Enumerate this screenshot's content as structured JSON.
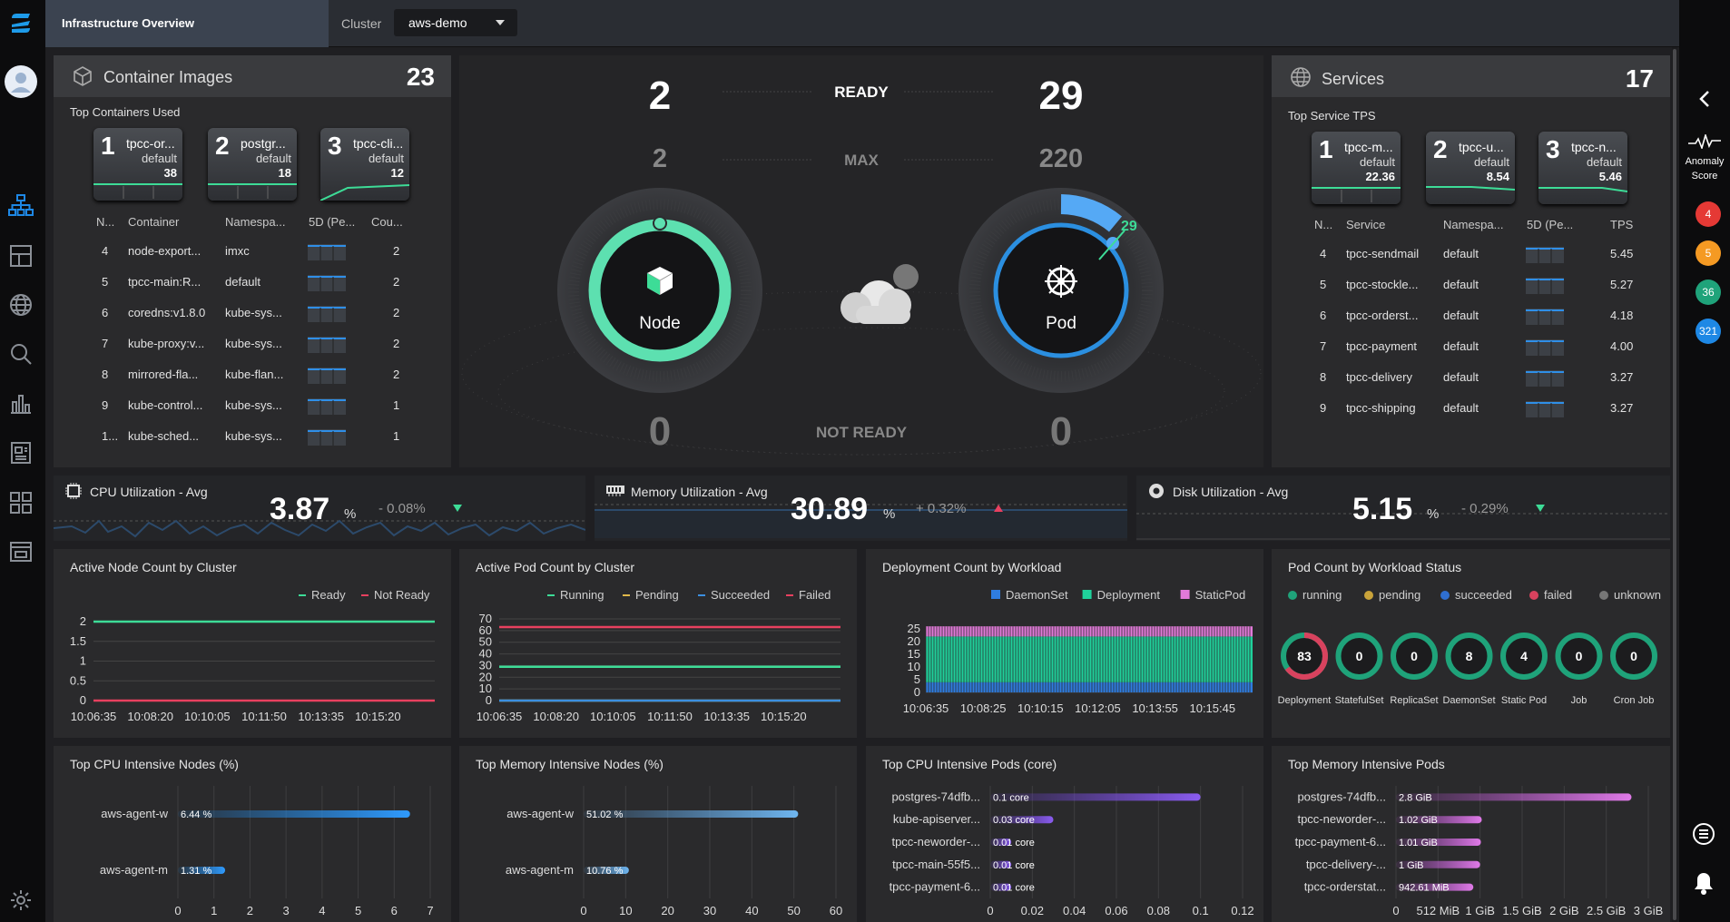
{
  "header": {
    "page_title": "Infrastructure Overview",
    "cluster_label": "Cluster",
    "cluster_value": "aws-demo"
  },
  "container_images": {
    "title": "Container Images",
    "count": "23",
    "subtitle": "Top Containers Used",
    "cards": [
      {
        "rank": "1",
        "name": "tpcc-or...",
        "namespace": "default",
        "value": "38"
      },
      {
        "rank": "2",
        "name": "postgr...",
        "namespace": "default",
        "value": "18"
      },
      {
        "rank": "3",
        "name": "tpcc-cli...",
        "namespace": "default",
        "value": "12"
      }
    ],
    "columns": [
      "N...",
      "Container",
      "Namespa...",
      "5D (Pe...",
      "Cou..."
    ],
    "rows": [
      {
        "n": "4",
        "container": "node-export...",
        "namespace": "imxc",
        "count": "2"
      },
      {
        "n": "5",
        "container": "tpcc-main:R...",
        "namespace": "default",
        "count": "2"
      },
      {
        "n": "6",
        "container": "coredns:v1.8.0",
        "namespace": "kube-sys...",
        "count": "2"
      },
      {
        "n": "7",
        "container": "kube-proxy:v...",
        "namespace": "kube-sys...",
        "count": "2"
      },
      {
        "n": "8",
        "container": "mirrored-fla...",
        "namespace": "kube-flan...",
        "count": "2"
      },
      {
        "n": "9",
        "container": "kube-control...",
        "namespace": "kube-sys...",
        "count": "1"
      },
      {
        "n": "1...",
        "container": "kube-sched...",
        "namespace": "kube-sys...",
        "count": "1"
      }
    ]
  },
  "overview": {
    "ready_label": "READY",
    "max_label": "MAX",
    "not_ready_label": "NOT READY",
    "node_ready": "2",
    "node_max": "2",
    "node_not_ready": "0",
    "node_label": "Node",
    "pod_ready": "29",
    "pod_max": "220",
    "pod_not_ready": "0",
    "pod_label": "Pod",
    "pod_gauge_value": "29"
  },
  "services": {
    "title": "Services",
    "count": "17",
    "subtitle": "Top Service TPS",
    "cards": [
      {
        "rank": "1",
        "name": "tpcc-m...",
        "namespace": "default",
        "value": "22.36"
      },
      {
        "rank": "2",
        "name": "tpcc-u...",
        "namespace": "default",
        "value": "8.54"
      },
      {
        "rank": "3",
        "name": "tpcc-n...",
        "namespace": "default",
        "value": "5.46"
      }
    ],
    "columns": [
      "N...",
      "Service",
      "Namespa...",
      "5D (Pe...",
      "TPS"
    ],
    "rows": [
      {
        "n": "4",
        "service": "tpcc-sendmail",
        "namespace": "default",
        "tps": "5.45"
      },
      {
        "n": "5",
        "service": "tpcc-stockle...",
        "namespace": "default",
        "tps": "5.27"
      },
      {
        "n": "6",
        "service": "tpcc-orderst...",
        "namespace": "default",
        "tps": "4.18"
      },
      {
        "n": "7",
        "service": "tpcc-payment",
        "namespace": "default",
        "tps": "4.00"
      },
      {
        "n": "8",
        "service": "tpcc-delivery",
        "namespace": "default",
        "tps": "3.27"
      },
      {
        "n": "9",
        "service": "tpcc-shipping",
        "namespace": "default",
        "tps": "3.27"
      }
    ]
  },
  "utilization": {
    "cpu": {
      "label": "CPU Utilization - Avg",
      "value": "3.87",
      "unit": "%",
      "delta": "- 0.08%",
      "trend": "down"
    },
    "memory": {
      "label": "Memory Utilization - Avg",
      "value": "30.89",
      "unit": "%",
      "delta": "+ 0.32%",
      "trend": "up"
    },
    "disk": {
      "label": "Disk Utilization - Avg",
      "value": "5.15",
      "unit": "%",
      "delta": "- 0.29%",
      "trend": "down"
    }
  },
  "right_rail": {
    "anomaly_label_1": "Anomaly",
    "anomaly_label_2": "Score",
    "badges": [
      {
        "value": "4",
        "color": "#e53935"
      },
      {
        "value": "5",
        "color": "#f59a23"
      },
      {
        "value": "36",
        "color": "#1fa37a"
      },
      {
        "value": "321",
        "color": "#1e88e5"
      }
    ]
  },
  "chart_data": [
    {
      "type": "line",
      "title": "Active Node Count by Cluster",
      "x": [
        "10:06:35",
        "10:08:20",
        "10:10:05",
        "10:11:50",
        "10:13:35",
        "10:15:20"
      ],
      "yticks": [
        "2",
        "1.5",
        "1",
        "0.5",
        "0"
      ],
      "ylim": [
        0,
        2
      ],
      "series": [
        {
          "name": "Ready",
          "color": "#3ddc97",
          "values": [
            2,
            2,
            2,
            2,
            2,
            2
          ]
        },
        {
          "name": "Not Ready",
          "color": "#e8405f",
          "values": [
            0,
            0,
            0,
            0,
            0,
            0
          ]
        }
      ]
    },
    {
      "type": "line",
      "title": "Active Pod Count by Cluster",
      "x": [
        "10:06:35",
        "10:08:20",
        "10:10:05",
        "10:11:50",
        "10:13:35",
        "10:15:20"
      ],
      "yticks": [
        "70",
        "60",
        "50",
        "40",
        "30",
        "20",
        "10",
        "0"
      ],
      "ylim": [
        0,
        70
      ],
      "series": [
        {
          "name": "Running",
          "color": "#3ddc97",
          "values": [
            29,
            29,
            29,
            29,
            29,
            29
          ]
        },
        {
          "name": "Pending",
          "color": "#e0b84a",
          "values": [
            0,
            0,
            0,
            0,
            0,
            0
          ]
        },
        {
          "name": "Succeeded",
          "color": "#3b8fe0",
          "values": [
            0,
            0,
            0,
            0,
            0,
            0
          ]
        },
        {
          "name": "Failed",
          "color": "#e8405f",
          "values": [
            63,
            63,
            63,
            63,
            63,
            63
          ]
        }
      ]
    },
    {
      "type": "bar",
      "title": "Deployment Count by Workload",
      "x": [
        "10:06:35",
        "10:08:25",
        "10:10:15",
        "10:12:05",
        "10:13:55",
        "10:15:45"
      ],
      "yticks": [
        "25",
        "20",
        "15",
        "10",
        "5",
        "0"
      ],
      "ylim": [
        0,
        25
      ],
      "stacked": true,
      "series": [
        {
          "name": "DaemonSet",
          "color": "#2f7de1",
          "value": 4
        },
        {
          "name": "Deployment",
          "color": "#1fd19b",
          "value": 18
        },
        {
          "name": "StaticPod",
          "color": "#e27ad9",
          "value": 4
        }
      ]
    },
    {
      "type": "pie",
      "title": "Pod Count by Workload Status",
      "legend": [
        {
          "name": "running",
          "color": "#1fa37a"
        },
        {
          "name": "pending",
          "color": "#c9a33a"
        },
        {
          "name": "succeeded",
          "color": "#2f6fd1"
        },
        {
          "name": "failed",
          "color": "#d8425e"
        },
        {
          "name": "unknown",
          "color": "#777777"
        }
      ],
      "items": [
        {
          "label": "Deployment",
          "value": "83",
          "running": 29,
          "failed": 54
        },
        {
          "label": "StatefulSet",
          "value": "0",
          "running": 0,
          "failed": 0
        },
        {
          "label": "ReplicaSet",
          "value": "0",
          "running": 0,
          "failed": 0
        },
        {
          "label": "DaemonSet",
          "value": "8",
          "running": 8,
          "failed": 0
        },
        {
          "label": "Static Pod",
          "value": "4",
          "running": 4,
          "failed": 0
        },
        {
          "label": "Job",
          "value": "0",
          "running": 0,
          "failed": 0
        },
        {
          "label": "Cron Job",
          "value": "0",
          "running": 0,
          "failed": 0
        }
      ]
    },
    {
      "type": "bar",
      "orientation": "horizontal",
      "title": "Top CPU Intensive Nodes (%)",
      "xticks": [
        "0",
        "1",
        "2",
        "3",
        "4",
        "5",
        "6",
        "7"
      ],
      "xlim": [
        0,
        7
      ],
      "bars": [
        {
          "label": "aws-agent-w",
          "value": 6.44,
          "text": "6.44 %"
        },
        {
          "label": "aws-agent-m",
          "value": 1.31,
          "text": "1.31 %"
        }
      ]
    },
    {
      "type": "bar",
      "orientation": "horizontal",
      "title": "Top Memory Intensive Nodes (%)",
      "xticks": [
        "0",
        "10",
        "20",
        "30",
        "40",
        "50",
        "60"
      ],
      "xlim": [
        0,
        60
      ],
      "bars": [
        {
          "label": "aws-agent-w",
          "value": 51.02,
          "text": "51.02 %"
        },
        {
          "label": "aws-agent-m",
          "value": 10.76,
          "text": "10.76 %"
        }
      ]
    },
    {
      "type": "bar",
      "orientation": "horizontal",
      "title": "Top CPU Intensive Pods (core)",
      "xticks": [
        "0",
        "0.02",
        "0.04",
        "0.06",
        "0.08",
        "0.1",
        "0.12"
      ],
      "xlim": [
        0,
        0.12
      ],
      "bars": [
        {
          "label": "postgres-74dfb...",
          "value": 0.1,
          "text": "0.1 core"
        },
        {
          "label": "kube-apiserver...",
          "value": 0.03,
          "text": "0.03 core"
        },
        {
          "label": "tpcc-neworder-...",
          "value": 0.01,
          "text": "0.01 core"
        },
        {
          "label": "tpcc-main-55f5...",
          "value": 0.01,
          "text": "0.01 core"
        },
        {
          "label": "tpcc-payment-6...",
          "value": 0.01,
          "text": "0.01 core"
        }
      ]
    },
    {
      "type": "bar",
      "orientation": "horizontal",
      "title": "Top Memory Intensive Pods",
      "xticks": [
        "0",
        "512 MiB",
        "1 GiB",
        "1.5 GiB",
        "2 GiB",
        "2.5 GiB",
        "3 GiB"
      ],
      "xlim": [
        0,
        3
      ],
      "bars": [
        {
          "label": "postgres-74dfb...",
          "value": 2.8,
          "text": "2.8 GiB"
        },
        {
          "label": "tpcc-neworder-...",
          "value": 1.02,
          "text": "1.02 GiB"
        },
        {
          "label": "tpcc-payment-6...",
          "value": 1.01,
          "text": "1.01 GiB"
        },
        {
          "label": "tpcc-delivery-...",
          "value": 1.0,
          "text": "1 GiB"
        },
        {
          "label": "tpcc-orderstat...",
          "value": 0.92,
          "text": "942.61 MiB"
        }
      ]
    }
  ]
}
